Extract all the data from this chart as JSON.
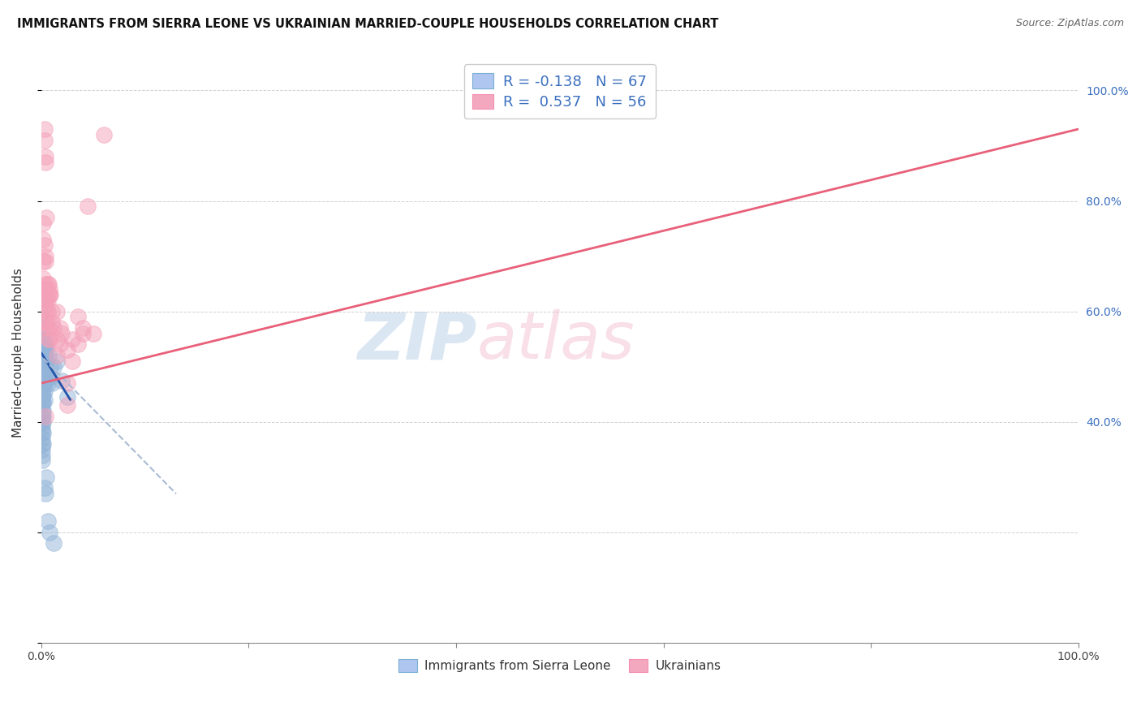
{
  "title": "IMMIGRANTS FROM SIERRA LEONE VS UKRAINIAN MARRIED-COUPLE HOUSEHOLDS CORRELATION CHART",
  "source": "Source: ZipAtlas.com",
  "ylabel": "Married-couple Households",
  "watermark_zip": "ZIP",
  "watermark_atlas": "atlas",
  "blue_color": "#92b4d8",
  "pink_color": "#f4a0b8",
  "blue_line_color": "#2255aa",
  "pink_line_color": "#e8607a",
  "blue_line_dashed_color": "#aabbd4",
  "legend_label1": "Immigrants from Sierra Leone",
  "legend_label2": "Ukrainians",
  "blue_scatter": [
    [
      0.1,
      62.0
    ],
    [
      0.1,
      59.0
    ],
    [
      0.1,
      57.0
    ],
    [
      0.1,
      55.0
    ],
    [
      0.1,
      54.0
    ],
    [
      0.1,
      53.0
    ],
    [
      0.1,
      52.0
    ],
    [
      0.1,
      51.0
    ],
    [
      0.1,
      50.0
    ],
    [
      0.1,
      49.0
    ],
    [
      0.1,
      48.0
    ],
    [
      0.1,
      47.0
    ],
    [
      0.1,
      46.0
    ],
    [
      0.1,
      45.0
    ],
    [
      0.1,
      44.0
    ],
    [
      0.1,
      43.5
    ],
    [
      0.1,
      42.0
    ],
    [
      0.1,
      41.0
    ],
    [
      0.1,
      40.0
    ],
    [
      0.1,
      39.0
    ],
    [
      0.1,
      38.0
    ],
    [
      0.1,
      37.0
    ],
    [
      0.1,
      36.0
    ],
    [
      0.1,
      35.0
    ],
    [
      0.1,
      34.0
    ],
    [
      0.1,
      33.0
    ],
    [
      0.2,
      55.0
    ],
    [
      0.2,
      53.0
    ],
    [
      0.2,
      51.0
    ],
    [
      0.2,
      49.0
    ],
    [
      0.2,
      47.0
    ],
    [
      0.2,
      45.0
    ],
    [
      0.2,
      43.5
    ],
    [
      0.2,
      42.0
    ],
    [
      0.2,
      41.0
    ],
    [
      0.2,
      40.0
    ],
    [
      0.2,
      38.0
    ],
    [
      0.2,
      36.0
    ],
    [
      0.3,
      53.5
    ],
    [
      0.3,
      52.0
    ],
    [
      0.3,
      50.0
    ],
    [
      0.3,
      48.5
    ],
    [
      0.3,
      47.0
    ],
    [
      0.3,
      45.5
    ],
    [
      0.3,
      44.0
    ],
    [
      0.4,
      54.0
    ],
    [
      0.4,
      52.0
    ],
    [
      0.4,
      50.5
    ],
    [
      0.4,
      49.0
    ],
    [
      0.4,
      47.5
    ],
    [
      0.5,
      55.0
    ],
    [
      0.5,
      53.5
    ],
    [
      0.5,
      30.0
    ],
    [
      0.6,
      47.0
    ],
    [
      0.7,
      52.0
    ],
    [
      0.8,
      48.0
    ],
    [
      0.9,
      50.0
    ],
    [
      1.0,
      47.0
    ],
    [
      1.2,
      50.0
    ],
    [
      1.5,
      51.0
    ],
    [
      2.0,
      47.5
    ],
    [
      2.5,
      44.5
    ],
    [
      0.3,
      28.0
    ],
    [
      0.4,
      27.0
    ],
    [
      0.6,
      22.0
    ],
    [
      0.8,
      20.0
    ],
    [
      1.2,
      18.0
    ]
  ],
  "pink_scatter": [
    [
      0.1,
      62.0
    ],
    [
      0.2,
      76.0
    ],
    [
      0.2,
      73.0
    ],
    [
      0.2,
      69.0
    ],
    [
      0.2,
      66.0
    ],
    [
      0.2,
      64.0
    ],
    [
      0.3,
      93.0
    ],
    [
      0.3,
      91.0
    ],
    [
      0.3,
      72.0
    ],
    [
      0.3,
      58.0
    ],
    [
      0.4,
      88.0
    ],
    [
      0.4,
      87.0
    ],
    [
      0.4,
      70.0
    ],
    [
      0.4,
      69.0
    ],
    [
      0.4,
      65.0
    ],
    [
      0.4,
      64.0
    ],
    [
      0.4,
      61.0
    ],
    [
      0.5,
      77.0
    ],
    [
      0.5,
      64.0
    ],
    [
      0.5,
      62.0
    ],
    [
      0.5,
      60.0
    ],
    [
      0.5,
      58.0
    ],
    [
      0.5,
      57.0
    ],
    [
      0.6,
      65.0
    ],
    [
      0.6,
      62.0
    ],
    [
      0.6,
      60.0
    ],
    [
      0.7,
      65.0
    ],
    [
      0.7,
      63.0
    ],
    [
      0.7,
      57.0
    ],
    [
      0.7,
      55.0
    ],
    [
      0.8,
      64.0
    ],
    [
      0.8,
      63.0
    ],
    [
      0.8,
      55.0
    ],
    [
      0.9,
      63.0
    ],
    [
      1.0,
      60.0
    ],
    [
      1.0,
      58.0
    ],
    [
      1.2,
      57.0
    ],
    [
      1.5,
      60.0
    ],
    [
      1.5,
      55.0
    ],
    [
      1.5,
      52.0
    ],
    [
      1.8,
      57.0
    ],
    [
      1.8,
      54.0
    ],
    [
      2.0,
      56.0
    ],
    [
      2.5,
      53.0
    ],
    [
      2.5,
      47.0
    ],
    [
      2.5,
      43.0
    ],
    [
      3.0,
      55.0
    ],
    [
      3.0,
      51.0
    ],
    [
      3.5,
      59.0
    ],
    [
      3.5,
      54.0
    ],
    [
      4.0,
      57.0
    ],
    [
      4.0,
      56.0
    ],
    [
      4.5,
      79.0
    ],
    [
      5.0,
      56.0
    ],
    [
      0.4,
      41.0
    ],
    [
      6.0,
      92.0
    ]
  ],
  "blue_regression": {
    "x_start": 0.0,
    "x_end": 2.8,
    "y_start": 52.5,
    "y_end": 44.0
  },
  "blue_regression_dashed": {
    "x_start": 0.2,
    "x_end": 13.0,
    "y_start": 51.5,
    "y_end": 27.0
  },
  "pink_regression": {
    "x_start": 0.0,
    "x_end": 100.0,
    "y_start": 47.0,
    "y_end": 93.0
  },
  "xmin": 0.0,
  "xmax": 100.0,
  "ymin": 0.0,
  "ymax": 105.0,
  "xticks": [
    0,
    20,
    40,
    60,
    80,
    100
  ],
  "xticklabels": [
    "0.0%",
    "",
    "",
    "",
    "",
    "100.0%"
  ],
  "yticks_right": [
    40,
    60,
    80,
    100
  ],
  "yticklabels_right": [
    "40.0%",
    "60.0%",
    "80.0%",
    "100.0%"
  ],
  "grid_yticks": [
    0,
    20,
    40,
    60,
    80,
    100
  ]
}
